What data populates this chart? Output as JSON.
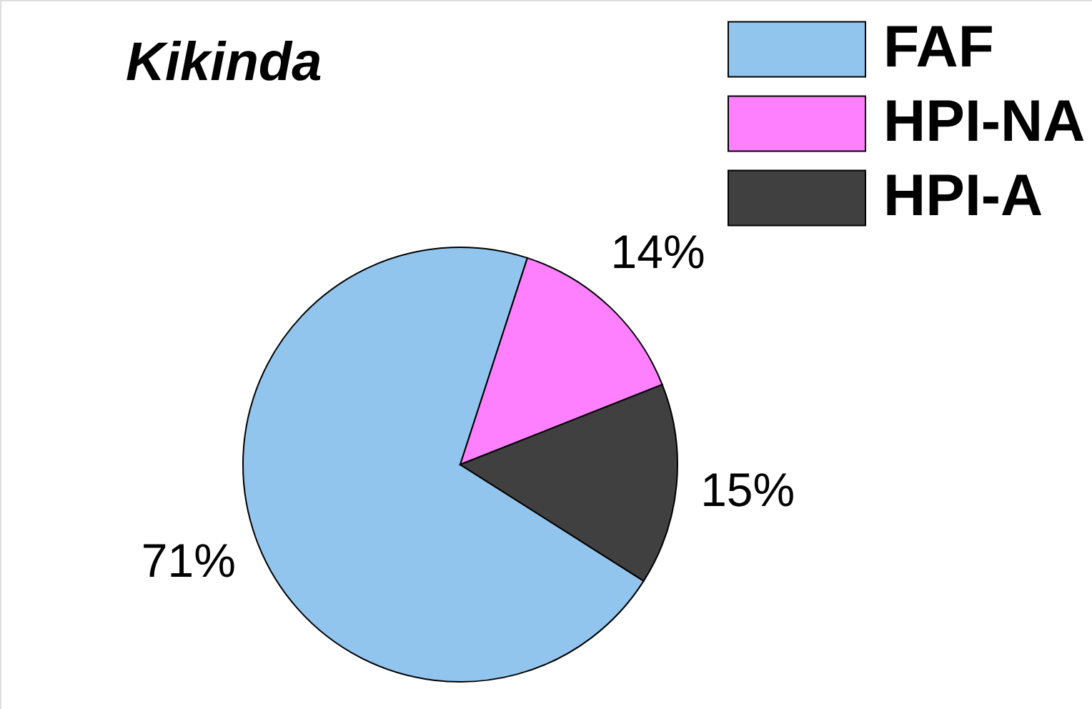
{
  "chart_data": {
    "type": "pie",
    "title": "Kikinda",
    "categories": [
      "FAF",
      "HPI-NA",
      "HPI-A"
    ],
    "values": [
      71,
      14,
      15
    ],
    "colors": [
      "#92c5ee",
      "#ff80ff",
      "#404040"
    ],
    "value_labels": [
      "71%",
      "14%",
      "15%"
    ],
    "legend": "top right"
  }
}
